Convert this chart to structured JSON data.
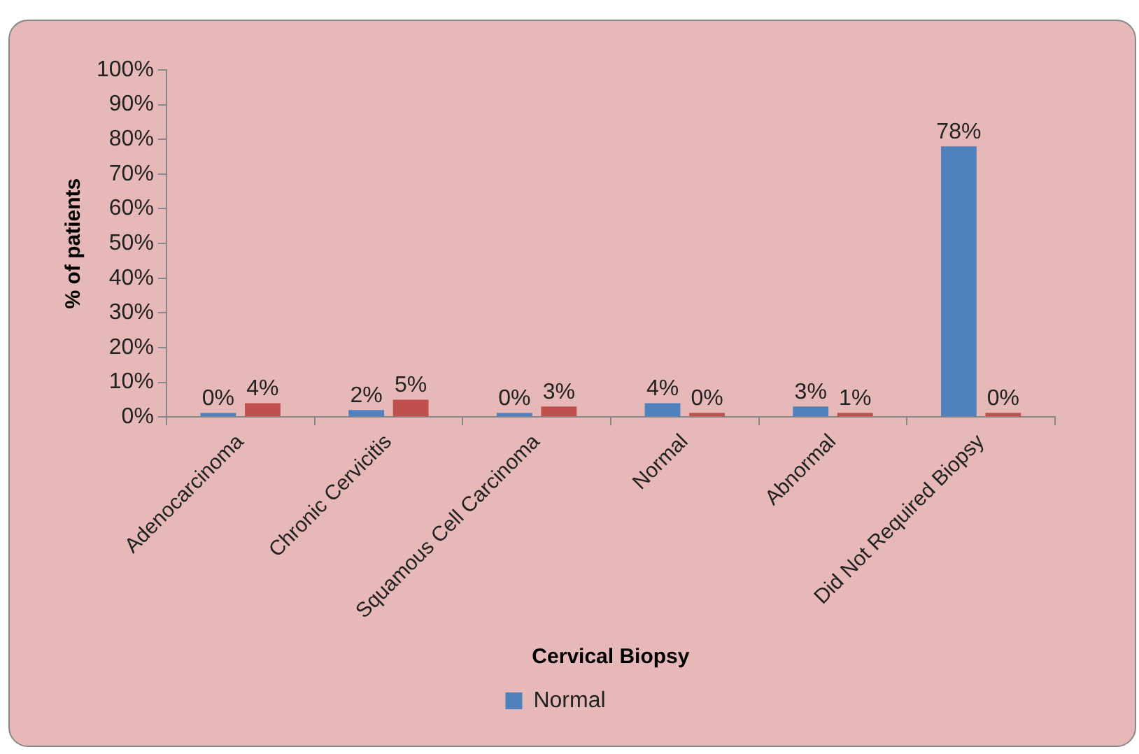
{
  "chart_data": {
    "type": "bar",
    "xlabel": "Cervical Biopsy",
    "ylabel": "% of patients",
    "categories": [
      "Adenocarcinoma",
      "Chronic Cervicitis",
      "Squamous Cell Carcinoma",
      "Normal",
      "Abnormal",
      "Did Not Required Biopsy"
    ],
    "series": [
      {
        "name": "Normal",
        "color": "#4f81bd",
        "values": [
          0,
          2,
          0,
          4,
          3,
          78
        ],
        "value_labels": [
          "0%",
          "2%",
          "0%",
          "4%",
          "3%",
          "78%"
        ]
      },
      {
        "color": "#c0504d",
        "values": [
          4,
          5,
          3,
          0,
          1,
          0
        ],
        "value_labels": [
          "4%",
          "5%",
          "3%",
          "0%",
          "1%",
          "0%"
        ]
      }
    ],
    "ylim": [
      0,
      100
    ],
    "yticks": [
      {
        "value": 0,
        "label": "0%"
      },
      {
        "value": 10,
        "label": "10%"
      },
      {
        "value": 20,
        "label": "20%"
      },
      {
        "value": 30,
        "label": "30%"
      },
      {
        "value": 40,
        "label": "40%"
      },
      {
        "value": 50,
        "label": "50%"
      },
      {
        "value": 60,
        "label": "60%"
      },
      {
        "value": 70,
        "label": "70%"
      },
      {
        "value": 80,
        "label": "80%"
      },
      {
        "value": 90,
        "label": "90%"
      },
      {
        "value": 100,
        "label": "100%"
      }
    ],
    "grid": false,
    "legend": "bottom"
  }
}
